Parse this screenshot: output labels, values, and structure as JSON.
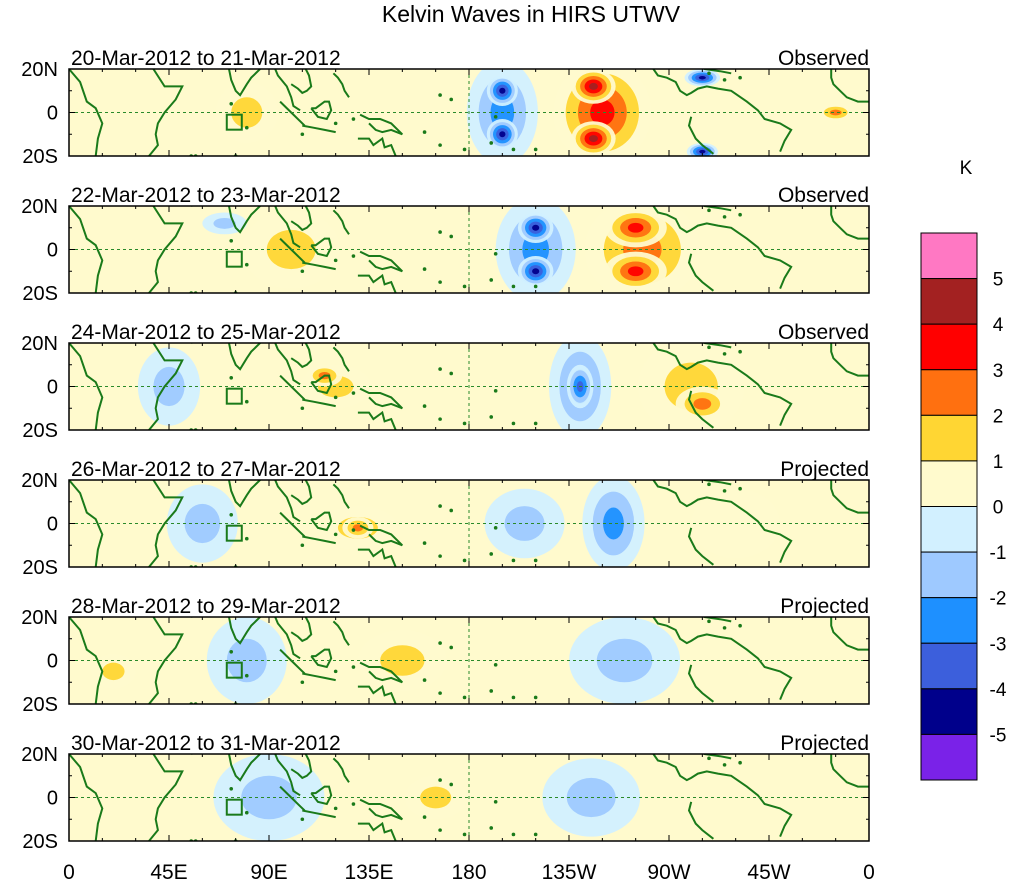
{
  "title": "Kelvin Waves in HIRS UTWV",
  "colorbar": {
    "unit": "K",
    "colors": [
      "#7a22e8",
      "#00008b",
      "#3c5fdc",
      "#1e90ff",
      "#9ec9ff",
      "#d2f0ff",
      "#fffacd",
      "#ffd633",
      "#ff7010",
      "#ff0000",
      "#a32121",
      "#ff78c3"
    ],
    "labels": [
      "-5",
      "-4",
      "-3",
      "-2",
      "-1",
      "0",
      "1",
      "2",
      "3",
      "4",
      "5"
    ]
  },
  "axes": {
    "lat_labels": [
      "20N",
      "0",
      "20S"
    ],
    "lon_labels": [
      "0",
      "45E",
      "90E",
      "135E",
      "180",
      "135W",
      "90W",
      "45W",
      "0"
    ]
  },
  "panels": [
    {
      "dates": "20-Mar-2012 to 21-Mar-2012",
      "status": "Observed"
    },
    {
      "dates": "22-Mar-2012 to 23-Mar-2012",
      "status": "Observed"
    },
    {
      "dates": "24-Mar-2012 to 25-Mar-2012",
      "status": "Observed"
    },
    {
      "dates": "26-Mar-2012 to 27-Mar-2012",
      "status": "Projected"
    },
    {
      "dates": "28-Mar-2012 to 29-Mar-2012",
      "status": "Projected"
    },
    {
      "dates": "30-Mar-2012 to 31-Mar-2012",
      "status": "Projected"
    }
  ],
  "map_data": {
    "type": "longitude-latitude anomaly map",
    "variable": "upper tropospheric water vapour brightness temperature anomaly",
    "lon_range": [
      0,
      360
    ],
    "lat_range": [
      -20,
      20
    ],
    "color_levels_K": [
      -5,
      -4,
      -3,
      -2,
      -1,
      0,
      1,
      2,
      3,
      4,
      5
    ],
    "anomaly_features": [
      [
        {
          "lon": 195,
          "lat": 0,
          "rx": 16,
          "ry": 24,
          "level": -2
        },
        {
          "lon": 195,
          "lat": 10,
          "rx": 7,
          "ry": 7,
          "level": -4
        },
        {
          "lon": 195,
          "lat": -10,
          "rx": 7,
          "ry": 7,
          "level": -4
        },
        {
          "lon": 240,
          "lat": 0,
          "rx": 22,
          "ry": 24,
          "level": 3
        },
        {
          "lon": 236,
          "lat": 12,
          "rx": 10,
          "ry": 8,
          "level": 4
        },
        {
          "lon": 236,
          "lat": -12,
          "rx": 10,
          "ry": 8,
          "level": 4
        },
        {
          "lon": 285,
          "lat": 16,
          "rx": 8,
          "ry": 4,
          "level": -4
        },
        {
          "lon": 285,
          "lat": -18,
          "rx": 7,
          "ry": 4,
          "level": -4
        },
        {
          "lon": 345,
          "lat": 0,
          "rx": 8,
          "ry": 4,
          "level": 2
        },
        {
          "lon": 80,
          "lat": 0,
          "rx": 14,
          "ry": 14,
          "level": 1
        }
      ],
      [
        {
          "lon": 210,
          "lat": 0,
          "rx": 18,
          "ry": 24,
          "level": -2
        },
        {
          "lon": 210,
          "lat": 10,
          "rx": 8,
          "ry": 7,
          "level": -4
        },
        {
          "lon": 210,
          "lat": -10,
          "rx": 8,
          "ry": 7,
          "level": -4
        },
        {
          "lon": 258,
          "lat": 0,
          "rx": 26,
          "ry": 24,
          "level": 2
        },
        {
          "lon": 255,
          "lat": 10,
          "rx": 14,
          "ry": 9,
          "level": 3
        },
        {
          "lon": 255,
          "lat": -10,
          "rx": 14,
          "ry": 9,
          "level": 3
        },
        {
          "lon": 100,
          "lat": 0,
          "rx": 22,
          "ry": 18,
          "level": 1
        },
        {
          "lon": 70,
          "lat": 12,
          "rx": 10,
          "ry": 5,
          "level": -1
        }
      ],
      [
        {
          "lon": 230,
          "lat": 0,
          "rx": 14,
          "ry": 24,
          "level": -2
        },
        {
          "lon": 230,
          "lat": 0,
          "rx": 6,
          "ry": 10,
          "level": -3
        },
        {
          "lon": 280,
          "lat": 0,
          "rx": 24,
          "ry": 22,
          "level": 1
        },
        {
          "lon": 285,
          "lat": -8,
          "rx": 12,
          "ry": 8,
          "level": 2
        },
        {
          "lon": 120,
          "lat": 0,
          "rx": 16,
          "ry": 10,
          "level": 1
        },
        {
          "lon": 115,
          "lat": 5,
          "rx": 8,
          "ry": 5,
          "level": 2
        },
        {
          "lon": 45,
          "lat": 0,
          "rx": 14,
          "ry": 18,
          "level": -1
        }
      ],
      [
        {
          "lon": 245,
          "lat": 0,
          "rx": 14,
          "ry": 22,
          "level": -2
        },
        {
          "lon": 205,
          "lat": 0,
          "rx": 18,
          "ry": 16,
          "level": -1
        },
        {
          "lon": 130,
          "lat": -2,
          "rx": 18,
          "ry": 10,
          "level": 1
        },
        {
          "lon": 130,
          "lat": -2,
          "rx": 7,
          "ry": 5,
          "level": 2
        },
        {
          "lon": 60,
          "lat": 0,
          "rx": 16,
          "ry": 18,
          "level": -1
        },
        {
          "lon": 300,
          "lat": 0,
          "rx": 20,
          "ry": 16,
          "level": 0
        }
      ],
      [
        {
          "lon": 150,
          "lat": 0,
          "rx": 20,
          "ry": 14,
          "level": 1
        },
        {
          "lon": 80,
          "lat": 0,
          "rx": 18,
          "ry": 20,
          "level": -1
        },
        {
          "lon": 250,
          "lat": 0,
          "rx": 25,
          "ry": 20,
          "level": -1
        },
        {
          "lon": 20,
          "lat": -5,
          "rx": 10,
          "ry": 8,
          "level": 1
        }
      ],
      [
        {
          "lon": 90,
          "lat": 0,
          "rx": 25,
          "ry": 20,
          "level": -1
        },
        {
          "lon": 235,
          "lat": 0,
          "rx": 22,
          "ry": 18,
          "level": -1
        },
        {
          "lon": 165,
          "lat": 0,
          "rx": 14,
          "ry": 10,
          "level": 1
        }
      ]
    ]
  }
}
